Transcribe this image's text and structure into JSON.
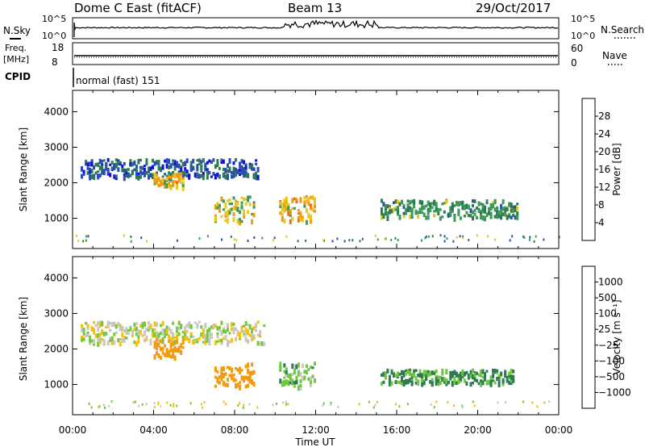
{
  "header": {
    "station": "Dome C East (fitACF)",
    "beam": "Beam 13",
    "date": "29/Oct/2017"
  },
  "top_panels": {
    "nsky_label": "N.Sky",
    "nsearch_label": "N.Search",
    "noise_tick_top": "10^5",
    "noise_tick_bottom": "10^0",
    "freq_label_1": "Freq.",
    "freq_label_2": "[MHz]",
    "freq_ticks": [
      "18",
      "8"
    ],
    "nave_label": "Nave",
    "nave_ticks": [
      "60",
      "0"
    ],
    "cpid_label": "CPID",
    "cpid_text": "normal (fast) 151"
  },
  "colors": {
    "power_scale": [
      "#1010e0",
      "#2a4fb0",
      "#2f7a55",
      "#3f9a5a",
      "#e8c820",
      "#f29a10",
      "#ef6a10",
      "#e02010"
    ],
    "velocity_scale": [
      "#2040c8",
      "#2f5fb0",
      "#2f7a55",
      "#70c840",
      "#c8c8c0",
      "#f2c010",
      "#f29a10",
      "#ef6a10",
      "#e02010"
    ]
  },
  "chart_data": [
    {
      "type": "heatmap",
      "name": "power",
      "ylabel": "Slant Range [km]",
      "xlabel": "Time UT",
      "xlim": [
        0,
        24
      ],
      "ylim": [
        150,
        4600
      ],
      "yticks": [
        1000,
        2000,
        3000,
        4000
      ],
      "xtick_labels": [
        "00:00",
        "04:00",
        "08:00",
        "12:00",
        "16:00",
        "20:00",
        "00:00"
      ],
      "colorbar": {
        "label": "Power [dB]",
        "range": [
          0,
          32
        ],
        "ticks": [
          "4",
          "8",
          "12",
          "16",
          "20",
          "24",
          "28"
        ]
      },
      "regions": [
        {
          "t": [
            0.4,
            9.2
          ],
          "r": [
            2200,
            2700
          ],
          "value": 7
        },
        {
          "t": [
            4.0,
            5.5
          ],
          "r": [
            1900,
            2300
          ],
          "value": 20
        },
        {
          "t": [
            7.0,
            9.0
          ],
          "r": [
            950,
            1650
          ],
          "value": 18
        },
        {
          "t": [
            10.2,
            12.0
          ],
          "r": [
            950,
            1650
          ],
          "value": 20
        },
        {
          "t": [
            15.2,
            22.0
          ],
          "r": [
            1050,
            1550
          ],
          "value": 12
        }
      ]
    },
    {
      "type": "heatmap",
      "name": "velocity",
      "ylabel": "Slant Range [km]",
      "xlabel": "Time UT",
      "xlim": [
        0,
        24
      ],
      "ylim": [
        150,
        4600
      ],
      "yticks": [
        1000,
        2000,
        3000,
        4000
      ],
      "xtick_labels": [
        "00:00",
        "04:00",
        "08:00",
        "12:00",
        "16:00",
        "20:00",
        "00:00"
      ],
      "colorbar": {
        "label": "Velocity [m s⁻¹]",
        "ticks": [
          "1000",
          "500",
          "100",
          "25",
          "−25",
          "−100",
          "−500",
          "−1000"
        ]
      },
      "regions": [
        {
          "t": [
            0.4,
            9.5
          ],
          "r": [
            2200,
            2800
          ],
          "value": 0
        },
        {
          "t": [
            4.0,
            5.5
          ],
          "r": [
            1800,
            2300
          ],
          "value": -150
        },
        {
          "t": [
            7.0,
            9.0
          ],
          "r": [
            950,
            1650
          ],
          "value": -200
        },
        {
          "t": [
            10.2,
            12.0
          ],
          "r": [
            950,
            1650
          ],
          "value": 60
        },
        {
          "t": [
            15.2,
            21.8
          ],
          "r": [
            1050,
            1450
          ],
          "value": 120
        }
      ]
    }
  ]
}
